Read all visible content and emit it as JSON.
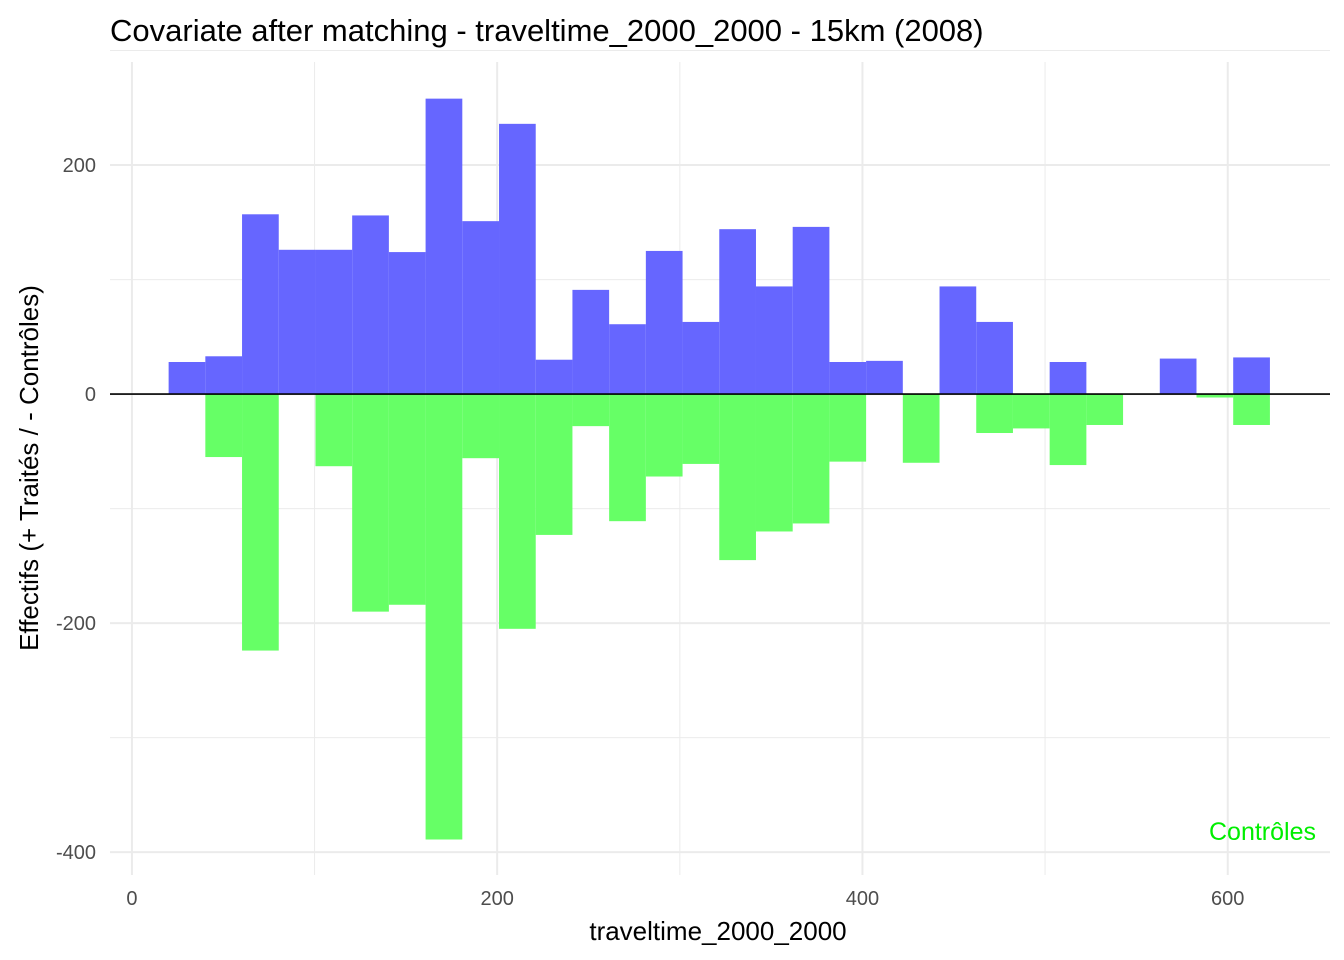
{
  "chart_data": {
    "type": "bar",
    "title": "Covariate after matching - traveltime_2000_2000 - 15km (2008)",
    "xlabel": "traveltime_2000_2000",
    "ylabel": "Effectifs (+ Traités / - Contrôles)",
    "xlim": [
      -12,
      656
    ],
    "ylim": [
      -420,
      290
    ],
    "x_ticks": [
      0,
      200,
      400,
      600
    ],
    "y_ticks": [
      -400,
      -200,
      0,
      200
    ],
    "x_tick_labels": [
      "0",
      "200",
      "400",
      "600"
    ],
    "y_tick_labels": [
      "-400",
      "-200",
      "0",
      "200"
    ],
    "bin_width": 20.1,
    "annotation": "Contrôles",
    "colors": {
      "treated": "#6666ff",
      "controls": "#66ff66",
      "annotation": "#00ee00",
      "zero_line": "#000000",
      "grid": "#ebebeb"
    },
    "series": [
      {
        "name": "Traités",
        "bins": [
          {
            "x0": 20.1,
            "value": 28
          },
          {
            "x0": 40.2,
            "value": 33
          },
          {
            "x0": 60.3,
            "value": 157
          },
          {
            "x0": 80.4,
            "value": 126
          },
          {
            "x0": 100.5,
            "value": 126
          },
          {
            "x0": 120.6,
            "value": 156
          },
          {
            "x0": 140.7,
            "value": 124
          },
          {
            "x0": 160.8,
            "value": 258
          },
          {
            "x0": 180.9,
            "value": 151
          },
          {
            "x0": 201.0,
            "value": 236
          },
          {
            "x0": 221.1,
            "value": 30
          },
          {
            "x0": 241.2,
            "value": 91
          },
          {
            "x0": 261.3,
            "value": 61
          },
          {
            "x0": 281.4,
            "value": 125
          },
          {
            "x0": 301.5,
            "value": 63
          },
          {
            "x0": 321.6,
            "value": 144
          },
          {
            "x0": 341.7,
            "value": 94
          },
          {
            "x0": 361.8,
            "value": 146
          },
          {
            "x0": 381.9,
            "value": 28
          },
          {
            "x0": 402.0,
            "value": 29
          },
          {
            "x0": 442.2,
            "value": 94
          },
          {
            "x0": 462.3,
            "value": 63
          },
          {
            "x0": 502.5,
            "value": 28
          },
          {
            "x0": 562.8,
            "value": 31
          },
          {
            "x0": 603.0,
            "value": 32
          }
        ]
      },
      {
        "name": "Contrôles",
        "bins": [
          {
            "x0": 40.2,
            "value": -55
          },
          {
            "x0": 60.3,
            "value": -224
          },
          {
            "x0": 100.5,
            "value": -63
          },
          {
            "x0": 120.6,
            "value": -190
          },
          {
            "x0": 140.7,
            "value": -184
          },
          {
            "x0": 160.8,
            "value": -389
          },
          {
            "x0": 180.9,
            "value": -56
          },
          {
            "x0": 201.0,
            "value": -205
          },
          {
            "x0": 221.1,
            "value": -123
          },
          {
            "x0": 241.2,
            "value": -28
          },
          {
            "x0": 261.3,
            "value": -111
          },
          {
            "x0": 281.4,
            "value": -72
          },
          {
            "x0": 301.5,
            "value": -61
          },
          {
            "x0": 321.6,
            "value": -145
          },
          {
            "x0": 341.7,
            "value": -120
          },
          {
            "x0": 361.8,
            "value": -113
          },
          {
            "x0": 381.9,
            "value": -59
          },
          {
            "x0": 422.1,
            "value": -60
          },
          {
            "x0": 462.3,
            "value": -34
          },
          {
            "x0": 482.4,
            "value": -30
          },
          {
            "x0": 502.5,
            "value": -62
          },
          {
            "x0": 522.6,
            "value": -27
          },
          {
            "x0": 582.9,
            "value": -3
          },
          {
            "x0": 603.0,
            "value": -27
          }
        ]
      }
    ]
  }
}
